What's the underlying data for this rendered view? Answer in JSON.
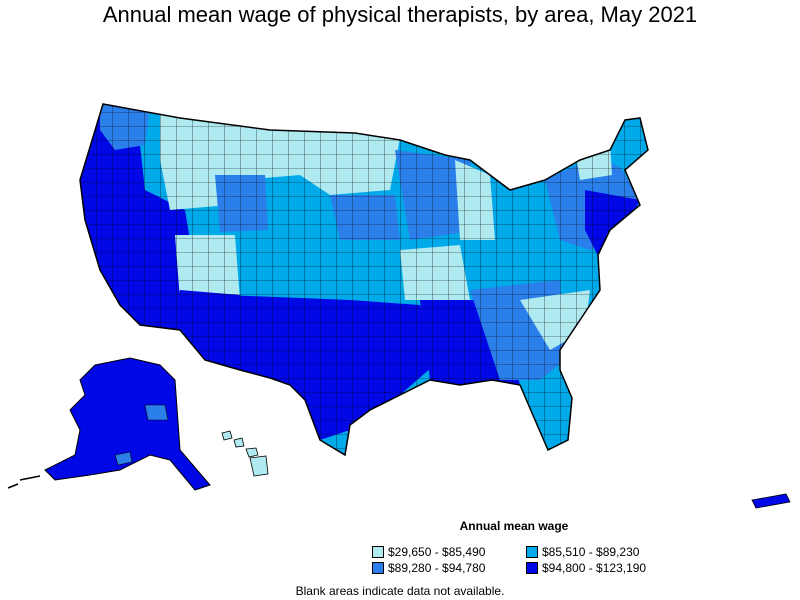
{
  "title": "Annual mean wage of physical therapists, by area, May 2021",
  "legend": {
    "title": "Annual mean wage",
    "items": [
      {
        "label": "$29,650 - $85,490",
        "color": "#aeeaf0"
      },
      {
        "label": "$85,510 - $89,230",
        "color": "#00aaea"
      },
      {
        "label": "$89,280 - $94,780",
        "color": "#2a7fea"
      },
      {
        "label": "$94,800 - $123,190",
        "color": "#0008e6"
      }
    ]
  },
  "note": "Blank areas indicate data not available."
}
